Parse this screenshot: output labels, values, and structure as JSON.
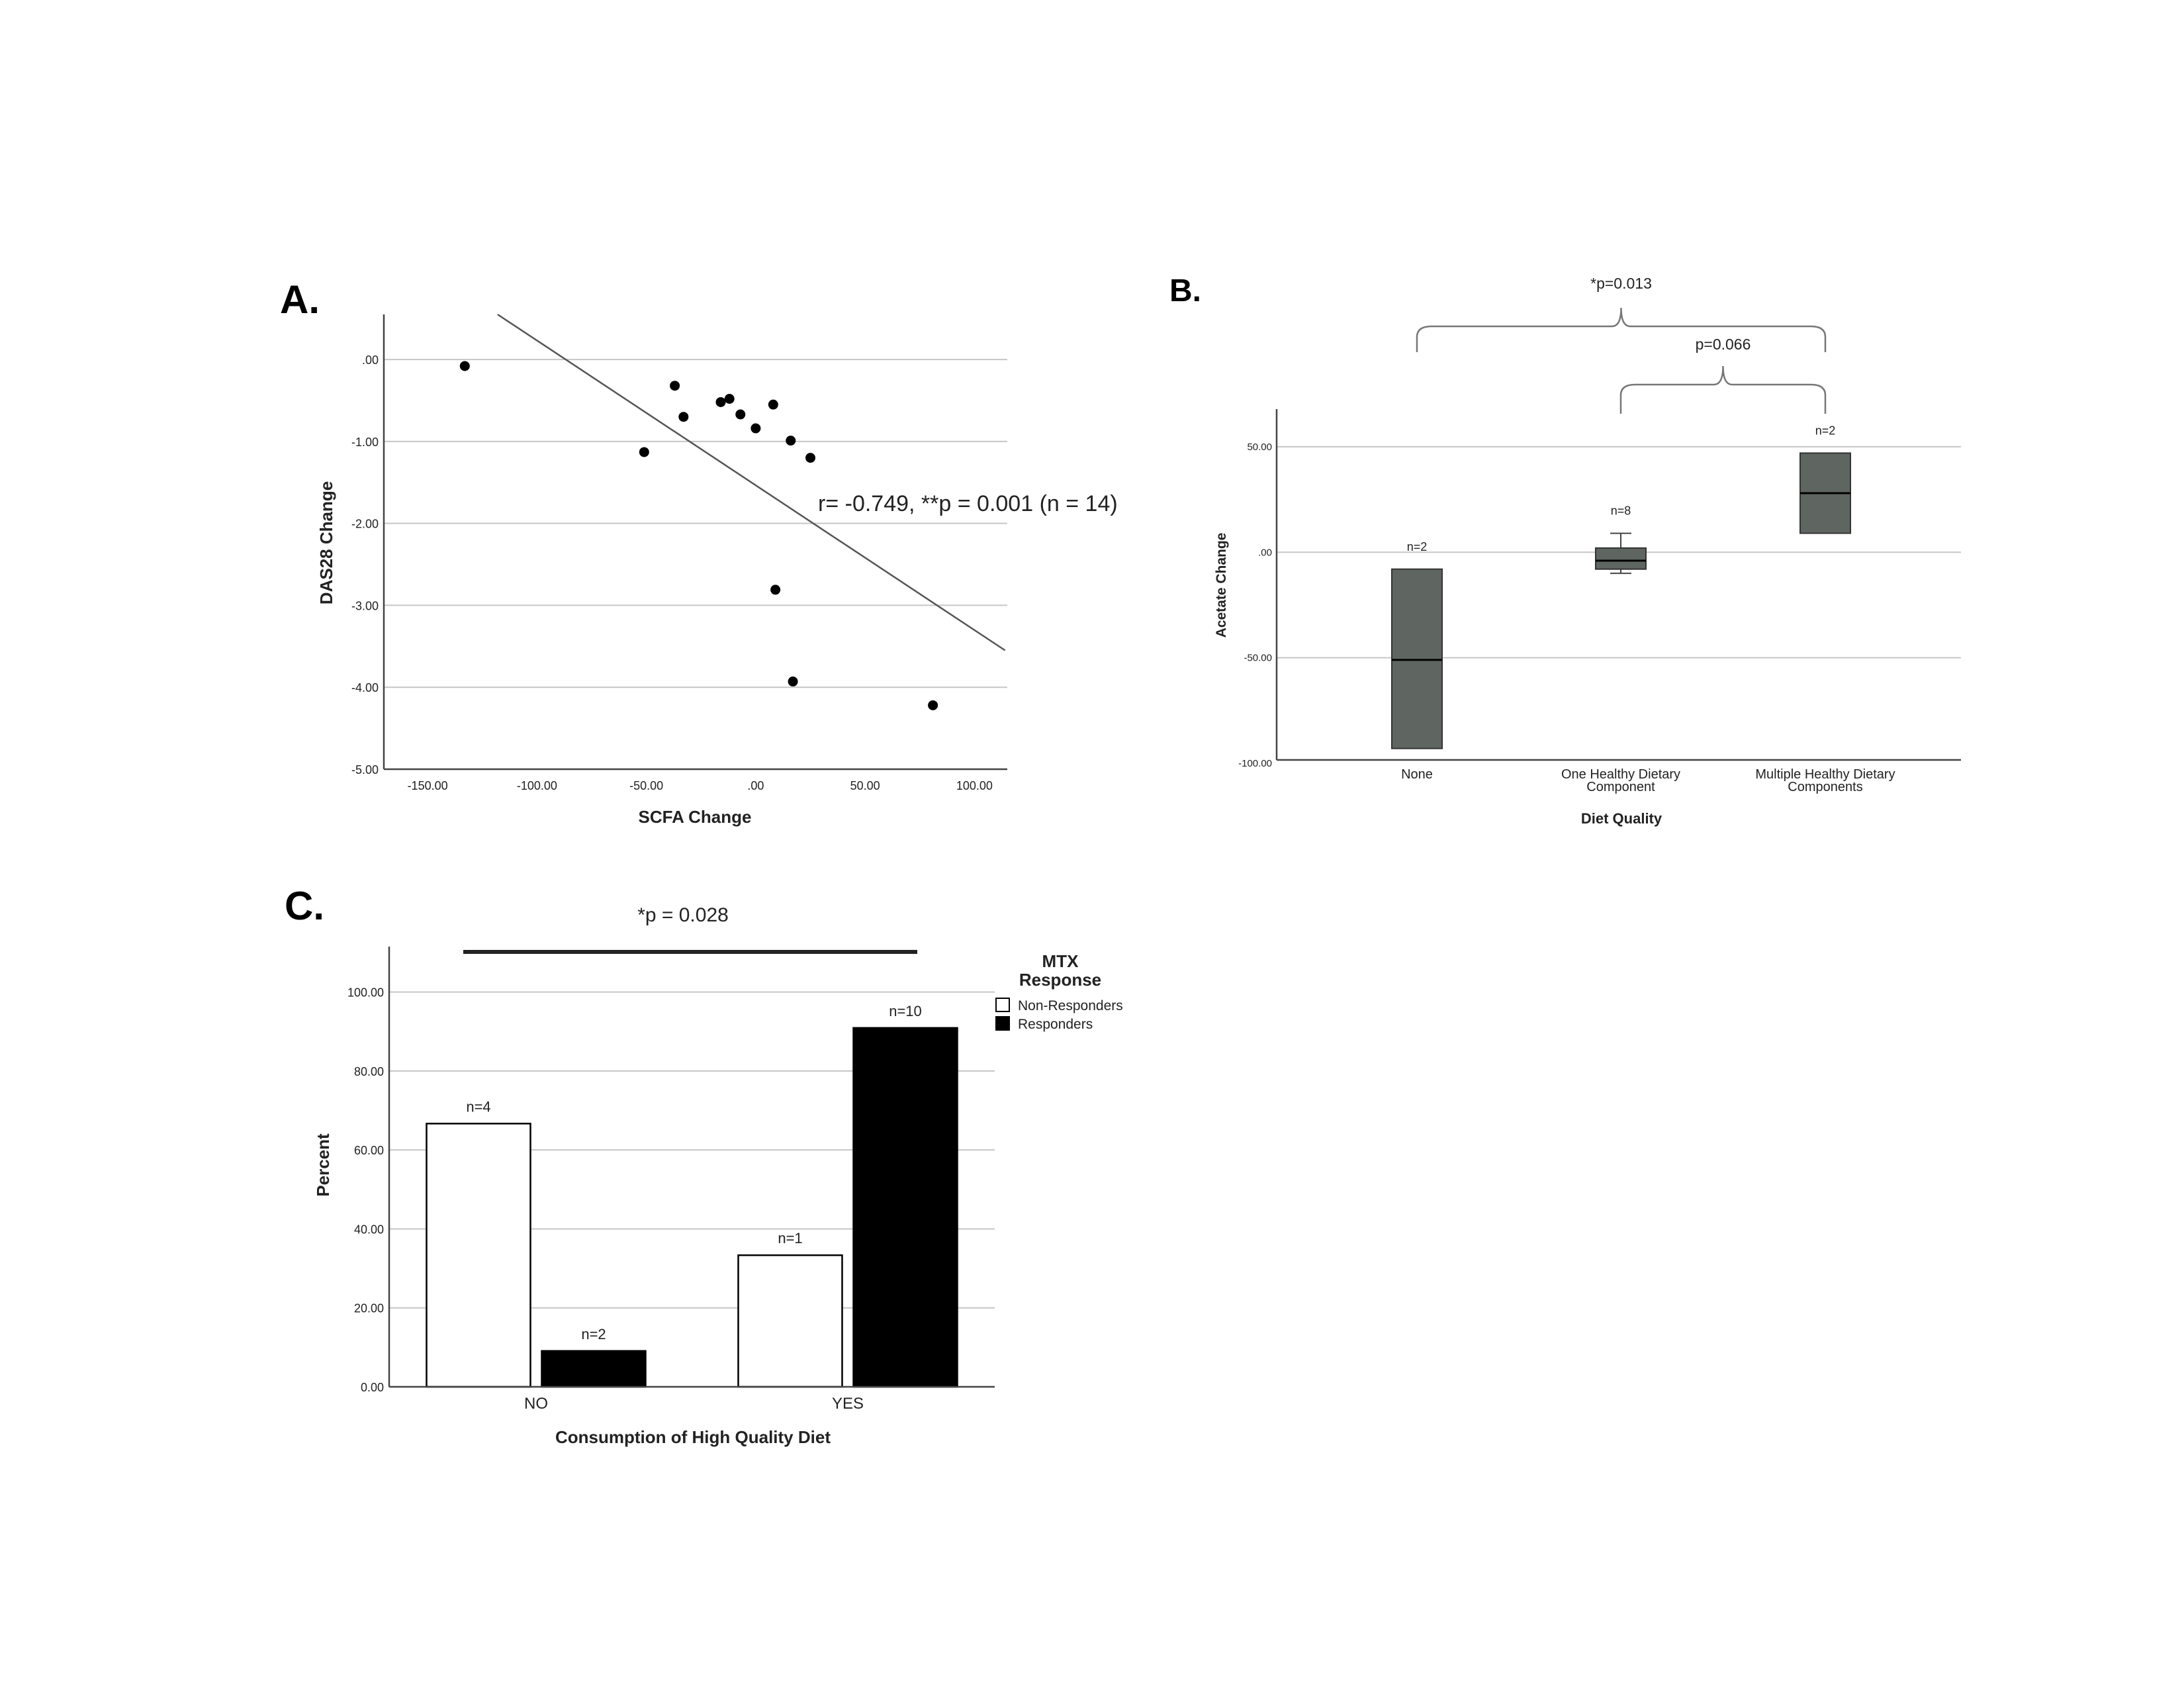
{
  "colors": {
    "gridline": "#c6c6c6",
    "axis": "#444444",
    "point": "#000000",
    "box_fill": "#5f6661",
    "bar_responders": "#000000",
    "bar_non_responders": "#ffffff"
  },
  "chart_data": [
    {
      "panel": "A.",
      "type": "scatter",
      "xlabel": "SCFA Change",
      "ylabel": "DAS28 Change",
      "xlim": [
        -170,
        115
      ],
      "ylim": [
        -5,
        0.55
      ],
      "x_ticks": [
        -150,
        -100,
        -50,
        0,
        50,
        100
      ],
      "x_tick_labels": [
        "-150.00",
        "-100.00",
        "-50.00",
        ".00",
        "50.00",
        "100.00"
      ],
      "y_ticks": [
        0,
        -1,
        -2,
        -3,
        -4,
        -5
      ],
      "y_tick_labels": [
        ".00",
        "-1.00",
        "-2.00",
        "-3.00",
        "-4.00",
        "-5.00"
      ],
      "grid": true,
      "points": [
        {
          "x": -133,
          "y": -0.08
        },
        {
          "x": -51,
          "y": -1.13
        },
        {
          "x": -37,
          "y": -0.32
        },
        {
          "x": -33,
          "y": -0.7
        },
        {
          "x": -16,
          "y": -0.52
        },
        {
          "x": -12,
          "y": -0.48
        },
        {
          "x": -7,
          "y": -0.67
        },
        {
          "x": 0,
          "y": -0.84
        },
        {
          "x": 8,
          "y": -0.55
        },
        {
          "x": 9,
          "y": -2.81
        },
        {
          "x": 16,
          "y": -0.99
        },
        {
          "x": 17,
          "y": -3.93
        },
        {
          "x": 25,
          "y": -1.2
        },
        {
          "x": 81,
          "y": -4.22
        }
      ],
      "fit_line": {
        "x": [
          -118,
          114
        ],
        "y": [
          0.55,
          -3.55
        ]
      },
      "annotation": "r= -0.749, **p = 0.001 (n = 14)"
    },
    {
      "panel": "B.",
      "type": "box",
      "xlabel": "Diet Quality",
      "ylabel": "Acetate Change",
      "ylim": [
        -100,
        68
      ],
      "y_ticks": [
        50,
        0,
        -50,
        -100
      ],
      "y_tick_labels": [
        "50.00",
        ".00",
        "-50.00",
        "-100.00"
      ],
      "grid": true,
      "boxes": [
        {
          "category": "None",
          "n_label": "n=2",
          "q1": -93,
          "median": -51,
          "q3": -8
        },
        {
          "category": "One Healthy Dietary Component",
          "category_lines": [
            "One Healthy Dietary",
            "Component"
          ],
          "n_label": "n=8",
          "min": -10,
          "q1": -8,
          "median": -4,
          "q3": 2,
          "max": 9
        },
        {
          "category": "Multiple Healthy Dietary Components",
          "category_lines": [
            "Multiple Healthy Dietary",
            "Components"
          ],
          "n_label": "n=2",
          "q1": 9,
          "median": 28,
          "q3": 47
        }
      ],
      "comparisons": [
        {
          "from": 0,
          "to": 2,
          "label": "*p=0.013"
        },
        {
          "from": 1,
          "to": 2,
          "label": "p=0.066"
        }
      ]
    },
    {
      "panel": "C.",
      "type": "bar",
      "xlabel": "Consumption of High Quality Diet",
      "ylabel": "Percent",
      "categories": [
        "NO",
        "YES"
      ],
      "ylim": [
        0,
        110
      ],
      "y_ticks": [
        0,
        20,
        40,
        60,
        80,
        100
      ],
      "y_tick_labels": [
        "0.00",
        "20.00",
        "40.00",
        "60.00",
        "80.00",
        "100.00"
      ],
      "grid": true,
      "legend_title_lines": [
        "MTX",
        "Response"
      ],
      "legend_position": "right",
      "series": [
        {
          "name": "Non-Responders",
          "values": [
            66.67,
            33.33
          ],
          "labels": [
            "n=4",
            "n=1"
          ]
        },
        {
          "name": "Responders",
          "values": [
            9.09,
            90.91
          ],
          "labels": [
            "n=2",
            "n=10"
          ]
        }
      ],
      "significance": "*p = 0.028"
    }
  ]
}
